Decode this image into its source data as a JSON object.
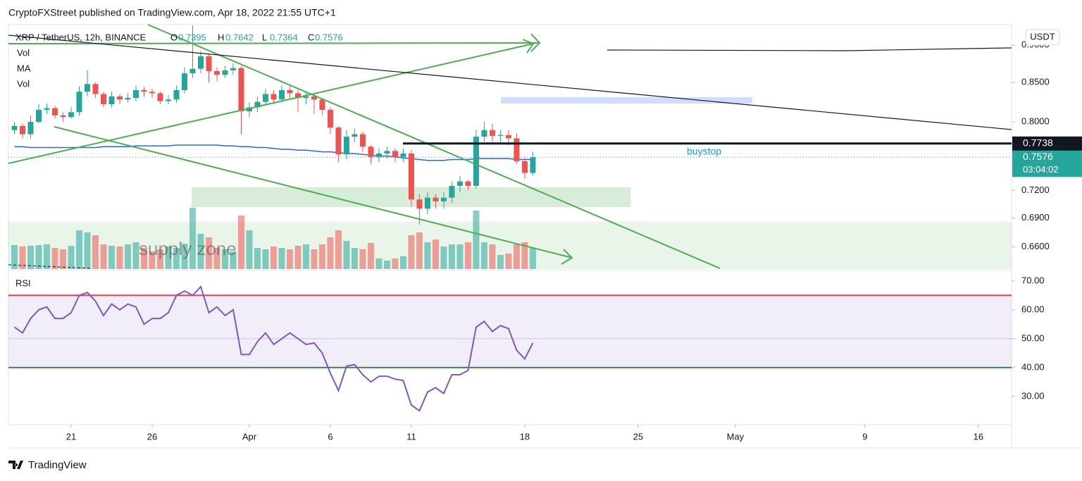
{
  "header": {
    "title": "CryptoFXStreet published on TradingView.com, Apr 18, 2022 21:55 UTC+1"
  },
  "footer": {
    "brand": "TradingView"
  },
  "chart_data": [
    {
      "type": "candlestick",
      "title": "XRP / TetherUS, 12h, BINANCE",
      "ohlc_labels": [
        "O",
        "H",
        "L",
        "C"
      ],
      "legend": [
        "Vol",
        "MA",
        "Vol"
      ],
      "currency": "USDT",
      "countdown": "03:04:02",
      "annotations": [
        "supply zone",
        "buystop"
      ],
      "up_color": "#26a69a",
      "down_color": "#ef5350",
      "ma_color": "#2962ff",
      "log": true,
      "grid": false,
      "ylim": [
        0.638,
        0.929
      ],
      "yticks": [
        {
          "value": 0.9,
          "label": "0.9000"
        },
        {
          "value": 0.85,
          "label": "0.8500"
        },
        {
          "value": 0.8,
          "label": "0.8000"
        },
        {
          "value": 0.72,
          "label": "0.7200"
        },
        {
          "value": 0.69,
          "label": "0.6900"
        },
        {
          "value": 0.66,
          "label": "0.6600"
        }
      ],
      "xlim": [
        -0.74,
        123.1
      ],
      "xticks": [
        {
          "value": 7,
          "label": "21"
        },
        {
          "value": 17,
          "label": "26"
        },
        {
          "value": 29,
          "label": "Apr"
        },
        {
          "value": 39,
          "label": "6"
        },
        {
          "value": 49,
          "label": "11"
        },
        {
          "value": 63,
          "label": "18"
        },
        {
          "value": 77,
          "label": "25"
        },
        {
          "value": 89,
          "label": "May"
        },
        {
          "value": 105,
          "label": "9"
        },
        {
          "value": 119,
          "label": "16"
        }
      ],
      "price_line": 0.7738,
      "open": [
        0.79,
        0.795,
        0.785,
        0.8,
        0.815,
        0.817,
        0.808,
        0.806,
        0.812,
        0.838,
        0.848,
        0.835,
        0.822,
        0.832,
        0.828,
        0.83,
        0.84,
        0.838,
        0.836,
        0.826,
        0.828,
        0.84,
        0.862,
        0.868,
        0.885,
        0.865,
        0.86,
        0.866,
        0.869,
        0.813,
        0.818,
        0.825,
        0.835,
        0.828,
        0.84,
        0.836,
        0.83,
        0.832,
        0.828,
        0.815,
        0.793,
        0.761,
        0.782,
        0.785,
        0.77,
        0.758,
        0.762,
        0.765,
        0.758,
        0.762,
        0.71,
        0.7,
        0.712,
        0.708,
        0.712,
        0.725,
        0.73,
        0.725,
        0.782,
        0.79,
        0.783,
        0.784,
        0.78,
        0.753,
        0.7395
      ],
      "high": [
        0.8,
        0.798,
        0.808,
        0.822,
        0.823,
        0.82,
        0.812,
        0.818,
        0.845,
        0.866,
        0.85,
        0.838,
        0.838,
        0.835,
        0.836,
        0.846,
        0.844,
        0.842,
        0.838,
        0.834,
        0.846,
        0.87,
        0.928,
        0.892,
        0.888,
        0.87,
        0.872,
        0.875,
        0.872,
        0.824,
        0.832,
        0.842,
        0.84,
        0.846,
        0.845,
        0.84,
        0.838,
        0.836,
        0.83,
        0.818,
        0.795,
        0.79,
        0.792,
        0.788,
        0.772,
        0.768,
        0.77,
        0.768,
        0.768,
        0.766,
        0.716,
        0.718,
        0.716,
        0.718,
        0.73,
        0.736,
        0.732,
        0.79,
        0.8,
        0.798,
        0.79,
        0.79,
        0.786,
        0.758,
        0.7642
      ],
      "low": [
        0.785,
        0.78,
        0.78,
        0.798,
        0.81,
        0.804,
        0.8,
        0.804,
        0.808,
        0.832,
        0.83,
        0.818,
        0.818,
        0.822,
        0.824,
        0.826,
        0.832,
        0.83,
        0.822,
        0.822,
        0.824,
        0.836,
        0.856,
        0.862,
        0.85,
        0.852,
        0.856,
        0.86,
        0.785,
        0.806,
        0.812,
        0.82,
        0.822,
        0.824,
        0.828,
        0.812,
        0.822,
        0.81,
        0.808,
        0.785,
        0.752,
        0.755,
        0.776,
        0.764,
        0.75,
        0.752,
        0.756,
        0.752,
        0.752,
        0.702,
        0.683,
        0.694,
        0.7,
        0.7,
        0.706,
        0.718,
        0.72,
        0.722,
        0.776,
        0.776,
        0.775,
        0.772,
        0.75,
        0.733,
        0.7364
      ],
      "close": [
        0.795,
        0.785,
        0.8,
        0.815,
        0.817,
        0.808,
        0.806,
        0.812,
        0.838,
        0.848,
        0.835,
        0.822,
        0.832,
        0.828,
        0.83,
        0.84,
        0.838,
        0.836,
        0.826,
        0.828,
        0.84,
        0.862,
        0.868,
        0.885,
        0.865,
        0.86,
        0.866,
        0.869,
        0.813,
        0.818,
        0.825,
        0.835,
        0.828,
        0.84,
        0.836,
        0.83,
        0.832,
        0.828,
        0.815,
        0.793,
        0.761,
        0.782,
        0.785,
        0.77,
        0.758,
        0.762,
        0.765,
        0.758,
        0.762,
        0.71,
        0.7,
        0.712,
        0.708,
        0.712,
        0.725,
        0.73,
        0.725,
        0.782,
        0.79,
        0.783,
        0.784,
        0.78,
        0.753,
        0.7395,
        0.7576
      ],
      "ma": [
        0.77,
        0.77,
        0.769,
        0.769,
        0.769,
        0.769,
        0.769,
        0.769,
        0.769,
        0.769,
        0.769,
        0.77,
        0.77,
        0.77,
        0.77,
        0.771,
        0.771,
        0.771,
        0.771,
        0.771,
        0.772,
        0.772,
        0.772,
        0.772,
        0.772,
        0.772,
        0.771,
        0.771,
        0.77,
        0.77,
        0.769,
        0.769,
        0.768,
        0.767,
        0.767,
        0.766,
        0.766,
        0.765,
        0.764,
        0.764,
        0.763,
        0.762,
        0.762,
        0.761,
        0.76,
        0.759,
        0.759,
        0.758,
        0.757,
        0.756,
        0.755,
        0.754,
        0.754,
        0.754,
        0.755,
        0.755,
        0.755,
        0.756,
        0.756,
        0.756,
        0.756,
        0.756,
        0.755,
        0.755,
        0.755
      ]
    },
    {
      "type": "bar",
      "name": "Vol",
      "ylim": [
        0,
        100
      ],
      "values": [
        34,
        32,
        33,
        34,
        35,
        30,
        28,
        33,
        55,
        52,
        48,
        35,
        33,
        32,
        35,
        38,
        30,
        25,
        28,
        32,
        30,
        36,
        87,
        50,
        45,
        30,
        28,
        25,
        76,
        55,
        30,
        28,
        32,
        30,
        28,
        33,
        35,
        28,
        35,
        45,
        55,
        40,
        30,
        28,
        37,
        15,
        12,
        15,
        18,
        48,
        52,
        38,
        42,
        32,
        35,
        35,
        38,
        83,
        38,
        35,
        20,
        22,
        35,
        38,
        30
      ]
    },
    {
      "type": "line",
      "name": "RSI",
      "color": "#7e57c2",
      "ylim": [
        20.2,
        73.4
      ],
      "yticks": [
        {
          "value": 70,
          "label": "70.00"
        },
        {
          "value": 60,
          "label": "60.00"
        },
        {
          "value": 50,
          "label": "50.00"
        },
        {
          "value": 40,
          "label": "40.00"
        },
        {
          "value": 30,
          "label": "30.00"
        }
      ],
      "upper_band": 65,
      "middle_band": 50,
      "lower_band": 40,
      "upper_color": "#f23645",
      "lower_color": "#388e3c",
      "values": [
        54,
        52,
        57,
        60,
        61,
        57,
        57,
        59,
        65,
        66,
        63,
        58,
        62,
        60,
        62,
        61,
        55,
        57,
        57,
        59,
        65,
        66.5,
        65,
        68,
        59,
        61,
        58,
        60,
        44.5,
        44.5,
        49,
        52,
        48,
        50,
        52,
        50,
        48,
        48.5,
        45,
        38,
        32,
        40.5,
        41,
        37.5,
        35,
        37,
        37,
        36,
        35.5,
        27,
        25,
        31.5,
        33,
        31,
        37.5,
        37.5,
        39,
        54,
        56,
        52.5,
        54.5,
        53.5,
        46,
        43,
        48.5
      ]
    }
  ]
}
